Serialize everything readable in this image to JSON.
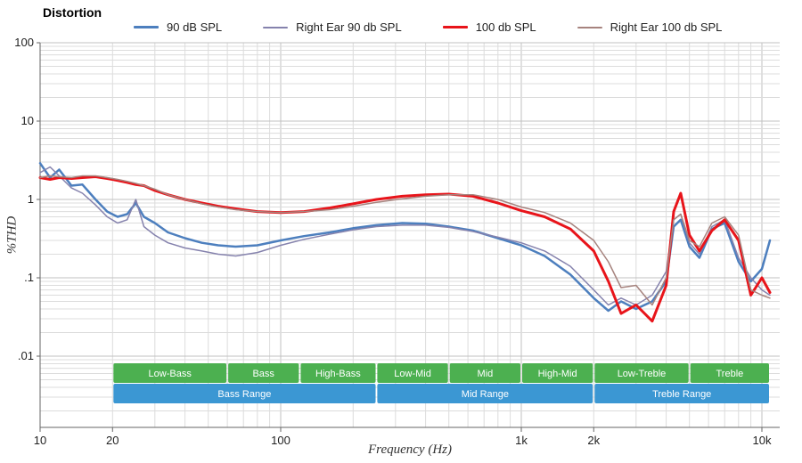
{
  "title": "Distortion",
  "axes": {
    "y_label": "%THD",
    "x_label": "Frequency (Hz)",
    "y_ticks": [
      {
        "label": "100",
        "value": 100
      },
      {
        "label": "10",
        "value": 10
      },
      {
        "label": "1",
        "value": 1
      },
      {
        "label": ".1",
        "value": 0.1
      },
      {
        "label": ".01",
        "value": 0.01
      }
    ],
    "x_ticks": [
      {
        "label": "10",
        "value": 10
      },
      {
        "label": "20",
        "value": 20
      },
      {
        "label": "100",
        "value": 100
      },
      {
        "label": "1k",
        "value": 1000
      },
      {
        "label": "2k",
        "value": 2000
      },
      {
        "label": "10k",
        "value": 10000
      }
    ]
  },
  "bands": {
    "sub_color": "#4cb050",
    "main_color": "#3b97d3",
    "sub": [
      {
        "label": "Low-Bass",
        "from": 20,
        "to": 60
      },
      {
        "label": "Bass",
        "from": 60,
        "to": 120
      },
      {
        "label": "High-Bass",
        "from": 120,
        "to": 250
      },
      {
        "label": "Low-Mid",
        "from": 250,
        "to": 500
      },
      {
        "label": "Mid",
        "from": 500,
        "to": 1000
      },
      {
        "label": "High-Mid",
        "from": 1000,
        "to": 2000
      },
      {
        "label": "Low-Treble",
        "from": 2000,
        "to": 5000
      },
      {
        "label": "Treble",
        "from": 5000,
        "to": 10800
      }
    ],
    "main": [
      {
        "label": "Bass Range",
        "from": 20,
        "to": 250
      },
      {
        "label": "Mid Range",
        "from": 250,
        "to": 2000
      },
      {
        "label": "Treble Range",
        "from": 2000,
        "to": 10800
      }
    ]
  },
  "chart_data": {
    "type": "line",
    "title": "Distortion",
    "xlabel": "Frequency (Hz)",
    "ylabel": "%THD",
    "x_scale": "log",
    "y_scale": "log",
    "xlim": [
      10,
      11800
    ],
    "ylim": [
      0.0012,
      100
    ],
    "grid": true,
    "legend_position": "top",
    "x": [
      10,
      11,
      12,
      13.5,
      15,
      17,
      19,
      21,
      23,
      25,
      27,
      30,
      34,
      40,
      47,
      55,
      65,
      80,
      100,
      125,
      160,
      200,
      250,
      320,
      400,
      500,
      630,
      800,
      1000,
      1250,
      1600,
      2000,
      2300,
      2600,
      3000,
      3500,
      4000,
      4300,
      4600,
      5000,
      5500,
      6200,
      7000,
      8000,
      9000,
      10000,
      10800
    ],
    "series": [
      {
        "name": "90 dB SPL",
        "color": "#4d7fbe",
        "width": 2.5,
        "values": [
          2.9,
          1.9,
          2.4,
          1.5,
          1.55,
          1.0,
          0.7,
          0.6,
          0.65,
          0.9,
          0.6,
          0.5,
          0.38,
          0.32,
          0.28,
          0.26,
          0.25,
          0.26,
          0.3,
          0.34,
          0.38,
          0.43,
          0.47,
          0.5,
          0.49,
          0.45,
          0.4,
          0.32,
          0.26,
          0.19,
          0.11,
          0.055,
          0.038,
          0.05,
          0.04,
          0.05,
          0.09,
          0.45,
          0.55,
          0.25,
          0.18,
          0.42,
          0.5,
          0.16,
          0.09,
          0.13,
          0.3
        ]
      },
      {
        "name": "Right Ear 90 db SPL",
        "color": "#8582ad",
        "width": 1.5,
        "values": [
          2.2,
          2.6,
          2.0,
          1.4,
          1.2,
          0.85,
          0.6,
          0.5,
          0.55,
          1.0,
          0.45,
          0.35,
          0.28,
          0.24,
          0.22,
          0.2,
          0.19,
          0.21,
          0.26,
          0.31,
          0.36,
          0.41,
          0.45,
          0.47,
          0.47,
          0.44,
          0.39,
          0.33,
          0.28,
          0.22,
          0.14,
          0.07,
          0.045,
          0.055,
          0.045,
          0.06,
          0.12,
          0.55,
          0.65,
          0.28,
          0.2,
          0.45,
          0.55,
          0.18,
          0.1,
          0.07,
          0.06
        ]
      },
      {
        "name": "100 db SPL",
        "color": "#e8141a",
        "width": 3,
        "values": [
          1.9,
          1.8,
          1.9,
          1.85,
          1.9,
          1.95,
          1.85,
          1.75,
          1.65,
          1.55,
          1.5,
          1.3,
          1.15,
          1.0,
          0.9,
          0.82,
          0.76,
          0.7,
          0.68,
          0.7,
          0.78,
          0.88,
          1.0,
          1.1,
          1.15,
          1.17,
          1.1,
          0.9,
          0.72,
          0.6,
          0.42,
          0.22,
          0.09,
          0.035,
          0.045,
          0.028,
          0.08,
          0.7,
          1.2,
          0.35,
          0.22,
          0.4,
          0.55,
          0.3,
          0.06,
          0.1,
          0.065
        ]
      },
      {
        "name": "Right Ear 100 db SPL",
        "color": "#a6837e",
        "width": 1.5,
        "values": [
          1.9,
          2.0,
          1.95,
          1.9,
          2.0,
          2.0,
          1.9,
          1.8,
          1.7,
          1.6,
          1.5,
          1.35,
          1.15,
          1.0,
          0.88,
          0.8,
          0.74,
          0.7,
          0.68,
          0.7,
          0.74,
          0.82,
          0.92,
          1.02,
          1.1,
          1.15,
          1.15,
          1.0,
          0.8,
          0.68,
          0.5,
          0.3,
          0.16,
          0.075,
          0.08,
          0.045,
          0.1,
          0.55,
          0.65,
          0.3,
          0.25,
          0.5,
          0.6,
          0.35,
          0.07,
          0.06,
          0.055
        ]
      }
    ]
  }
}
